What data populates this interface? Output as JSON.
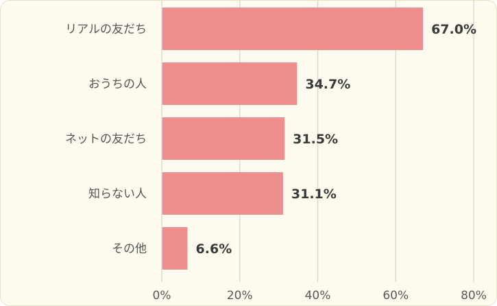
{
  "colors": {
    "bar": "#ee8f8f",
    "background": "#fdfbed",
    "grid": "#d9d9d9"
  },
  "chart_data": {
    "type": "bar",
    "orientation": "horizontal",
    "title": "",
    "xlabel": "",
    "ylabel": "",
    "categories": [
      "リアルの友だち",
      "おうちの人",
      "ネットの友だち",
      "知らない人",
      "その他"
    ],
    "values": [
      67.0,
      34.7,
      31.5,
      31.1,
      6.6
    ],
    "value_labels": [
      "67.0%",
      "34.7%",
      "31.5%",
      "31.1%",
      "6.6%"
    ],
    "xlim": [
      0,
      80
    ],
    "x_ticks": [
      "0%",
      "20%",
      "40%",
      "60%",
      "80%"
    ],
    "grid": true,
    "legend": "none"
  }
}
